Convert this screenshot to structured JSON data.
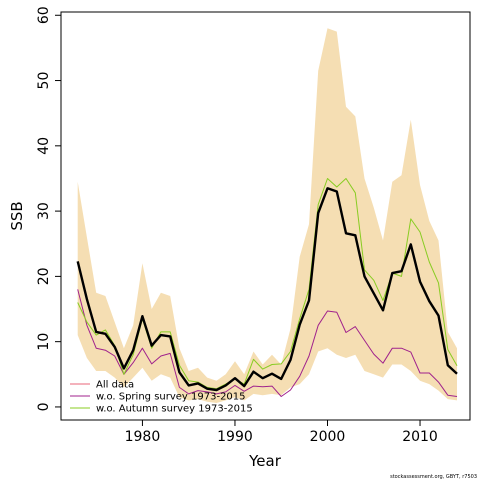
{
  "chart_data": {
    "type": "line",
    "title": "",
    "xlabel": "Year",
    "ylabel": "SSB",
    "xlim": [
      1971.2,
      2015.4
    ],
    "ylim": [
      -2,
      60.5
    ],
    "x_ticks": [
      1980,
      1990,
      2000,
      2010
    ],
    "y_ticks": [
      0,
      10,
      20,
      30,
      40,
      50,
      60
    ],
    "grid": false,
    "legend_position": "bottom-left",
    "footnote": "stockassessment.org, GBYT, r7503",
    "x": [
      1973,
      1974,
      1975,
      1976,
      1977,
      1978,
      1979,
      1980,
      1981,
      1982,
      1983,
      1984,
      1985,
      1986,
      1987,
      1988,
      1989,
      1990,
      1991,
      1992,
      1993,
      1994,
      1995,
      1996,
      1997,
      1998,
      1999,
      2000,
      2001,
      2002,
      2003,
      2004,
      2005,
      2006,
      2007,
      2008,
      2009,
      2010,
      2011,
      2012,
      2013,
      2014
    ],
    "band": {
      "color": "#f5deb3",
      "upper": [
        34.5,
        26.0,
        17.5,
        17.0,
        13.0,
        9.0,
        12.5,
        22.0,
        15.0,
        17.5,
        17.0,
        9.0,
        5.5,
        6.0,
        4.5,
        4.0,
        5.0,
        7.0,
        5.0,
        8.5,
        6.5,
        8.0,
        6.5,
        12.0,
        23.0,
        28.0,
        51.5,
        58.0,
        57.5,
        46.0,
        44.5,
        35.0,
        30.5,
        25.5,
        34.5,
        35.5,
        44.0,
        34.0,
        28.5,
        25.5,
        11.5,
        9.0
      ],
      "lower": [
        11.0,
        7.5,
        5.5,
        5.5,
        4.5,
        3.0,
        4.5,
        6.0,
        4.0,
        5.0,
        4.5,
        1.5,
        1.0,
        1.2,
        0.8,
        0.6,
        1.0,
        1.5,
        1.0,
        2.0,
        1.8,
        2.0,
        1.8,
        3.0,
        3.5,
        5.0,
        8.5,
        9.0,
        8.0,
        7.5,
        8.0,
        5.5,
        5.0,
        4.5,
        6.5,
        6.5,
        5.5,
        4.0,
        3.5,
        2.5,
        1.2,
        1.0
      ]
    },
    "series": [
      {
        "name": "All data",
        "color": "#000000",
        "values": [
          22.3,
          16.5,
          11.5,
          11.2,
          9.2,
          5.9,
          8.7,
          13.9,
          9.4,
          11.0,
          10.8,
          5.3,
          3.3,
          3.6,
          2.8,
          2.6,
          3.3,
          4.4,
          3.2,
          5.4,
          4.4,
          5.1,
          4.3,
          7.2,
          12.6,
          16.3,
          29.7,
          33.5,
          33.0,
          26.6,
          26.3,
          20.0,
          17.4,
          14.8,
          20.5,
          20.8,
          24.9,
          19.2,
          16.2,
          14.0,
          6.4,
          5.1
        ]
      },
      {
        "name": "w.o. Spring survey 1973-2015",
        "color": "#a0228c",
        "values": [
          18.0,
          12.5,
          9.0,
          8.7,
          7.8,
          5.0,
          6.8,
          9.0,
          6.6,
          7.8,
          8.2,
          3.0,
          2.0,
          2.5,
          2.3,
          2.0,
          2.3,
          3.3,
          2.4,
          3.2,
          3.1,
          3.2,
          1.6,
          2.6,
          4.7,
          7.8,
          12.5,
          14.7,
          14.5,
          11.4,
          12.3,
          10.2,
          8.1,
          6.7,
          9.0,
          9.0,
          8.4,
          5.2,
          5.2,
          3.8,
          1.8,
          1.6
        ]
      },
      {
        "name": "w.o. Autumn survey 1973-2015",
        "color": "#88cc22",
        "values": [
          16.0,
          13.0,
          11.0,
          11.8,
          9.4,
          5.0,
          8.0,
          13.5,
          9.0,
          11.5,
          11.5,
          6.4,
          4.0,
          3.8,
          3.0,
          2.8,
          3.5,
          4.3,
          3.5,
          7.3,
          5.8,
          6.5,
          6.6,
          8.5,
          13.5,
          18.0,
          31.0,
          35.0,
          33.7,
          35.0,
          32.8,
          21.0,
          19.4,
          16.3,
          20.5,
          20.0,
          28.8,
          26.8,
          22.2,
          19.0,
          8.8,
          6.3
        ]
      }
    ]
  }
}
